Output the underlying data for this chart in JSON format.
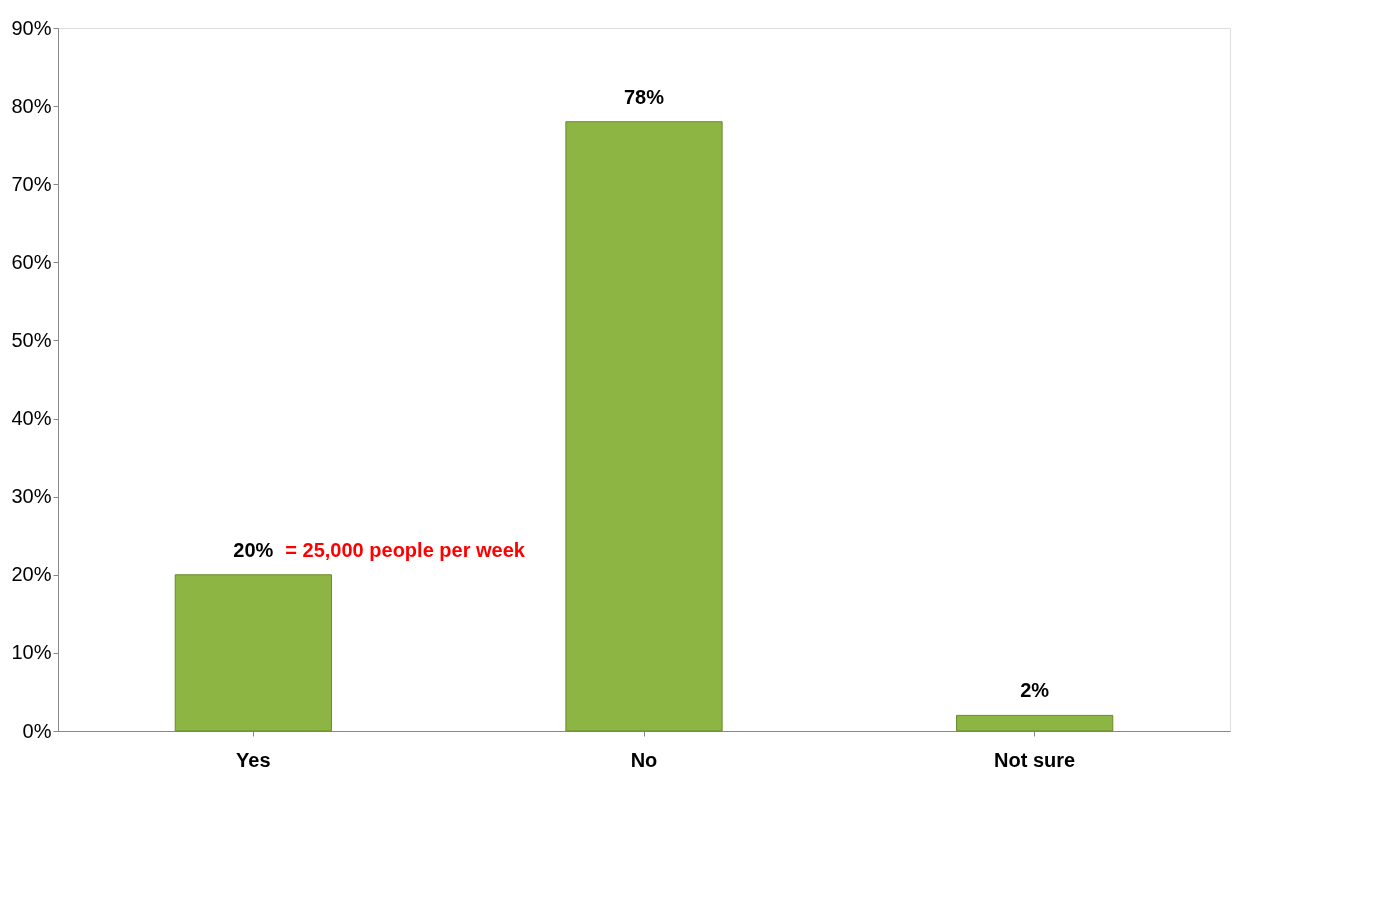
{
  "chart_data": {
    "type": "bar",
    "categories": [
      "Yes",
      "No",
      "Not sure"
    ],
    "values": [
      20,
      78,
      2
    ],
    "value_labels": [
      "20%",
      "78%",
      "2%"
    ],
    "color": "#8db543",
    "ylim": [
      0,
      90
    ],
    "yticks": [
      {
        "value": 0,
        "label": "0%"
      },
      {
        "value": 10,
        "label": "10%"
      },
      {
        "value": 20,
        "label": "20%"
      },
      {
        "value": 30,
        "label": "30%"
      },
      {
        "value": 40,
        "label": "40%"
      },
      {
        "value": 50,
        "label": "50%"
      },
      {
        "value": 60,
        "label": "60%"
      },
      {
        "value": 70,
        "label": "70%"
      },
      {
        "value": 80,
        "label": "80%"
      },
      {
        "value": 90,
        "label": "90%"
      }
    ],
    "annotations": [
      {
        "text": "= 25,000 people per week",
        "x": "Yes",
        "y": 20
      }
    ],
    "grid": false
  }
}
